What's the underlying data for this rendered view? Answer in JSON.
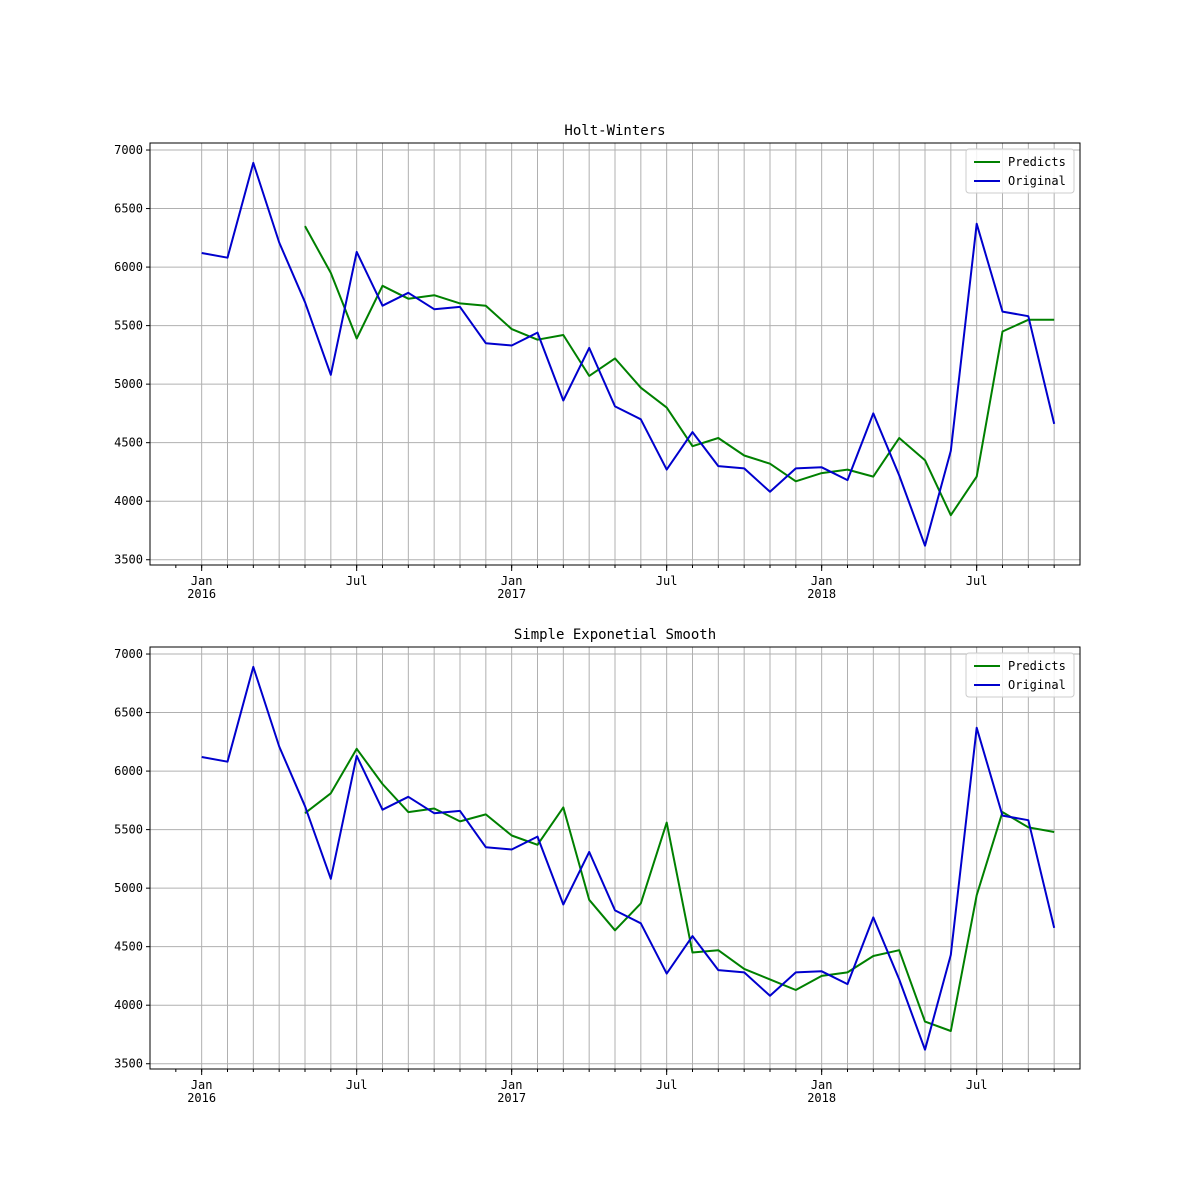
{
  "chart_data": [
    {
      "type": "line",
      "title": "Holt-Winters",
      "xlabel": "",
      "ylabel": "",
      "x_start": "2016-01",
      "x_end": "2018-10",
      "x_freq": "monthly",
      "xlim": [
        "2015-11",
        "2018-11"
      ],
      "ylim": [
        3500,
        7000
      ],
      "yticks": [
        "3500",
        "4000",
        "4500",
        "5000",
        "5500",
        "6000",
        "6500",
        "7000"
      ],
      "xticks_major": [
        {
          "month": "Jan",
          "year": "2016"
        },
        {
          "month": "Jul",
          "year": ""
        },
        {
          "month": "Jan",
          "year": "2017"
        },
        {
          "month": "Jul",
          "year": ""
        },
        {
          "month": "Jan",
          "year": "2018"
        },
        {
          "month": "Jul",
          "year": ""
        }
      ],
      "grid": true,
      "legend_position": "top-right",
      "series": [
        {
          "name": "Predicts",
          "color": "#008000",
          "values": [
            null,
            null,
            null,
            null,
            6350,
            5950,
            5390,
            5840,
            5730,
            5760,
            5690,
            5670,
            5470,
            5380,
            5420,
            5070,
            5220,
            4970,
            4800,
            4470,
            4540,
            4390,
            4320,
            4170,
            4240,
            4270,
            4210,
            4540,
            4350,
            3880,
            4210,
            5450,
            5550,
            5550
          ]
        },
        {
          "name": "Original",
          "color": "#0000cd",
          "values": [
            6120,
            6080,
            6890,
            6210,
            5700,
            5080,
            6130,
            5670,
            5780,
            5640,
            5660,
            5350,
            5330,
            5440,
            4860,
            5310,
            4810,
            4700,
            4270,
            4590,
            4300,
            4280,
            4080,
            4280,
            4290,
            4180,
            4750,
            4220,
            3620,
            4430,
            6370,
            5620,
            5580,
            4660
          ]
        }
      ]
    },
    {
      "type": "line",
      "title": "Simple Exponetial Smooth",
      "xlabel": "",
      "ylabel": "",
      "x_start": "2016-01",
      "x_end": "2018-10",
      "x_freq": "monthly",
      "xlim": [
        "2015-11",
        "2018-11"
      ],
      "ylim": [
        3500,
        7000
      ],
      "yticks": [
        "3500",
        "4000",
        "4500",
        "5000",
        "5500",
        "6000",
        "6500",
        "7000"
      ],
      "xticks_major": [
        {
          "month": "Jan",
          "year": "2016"
        },
        {
          "month": "Jul",
          "year": ""
        },
        {
          "month": "Jan",
          "year": "2017"
        },
        {
          "month": "Jul",
          "year": ""
        },
        {
          "month": "Jan",
          "year": "2018"
        },
        {
          "month": "Jul",
          "year": ""
        }
      ],
      "grid": true,
      "legend_position": "top-right",
      "series": [
        {
          "name": "Predicts",
          "color": "#008000",
          "values": [
            null,
            null,
            null,
            null,
            5640,
            5810,
            6190,
            5890,
            5650,
            5680,
            5570,
            5630,
            5450,
            5370,
            5690,
            4900,
            4640,
            4870,
            5560,
            4450,
            4470,
            4310,
            4220,
            4130,
            4250,
            4280,
            4420,
            4470,
            3860,
            3780,
            4940,
            5650,
            5520,
            5480
          ]
        },
        {
          "name": "Original",
          "color": "#0000cd",
          "values": [
            6120,
            6080,
            6890,
            6210,
            5700,
            5080,
            6130,
            5670,
            5780,
            5640,
            5660,
            5350,
            5330,
            5440,
            4860,
            5310,
            4810,
            4700,
            4270,
            4590,
            4300,
            4280,
            4080,
            4280,
            4290,
            4180,
            4750,
            4220,
            3620,
            4430,
            6370,
            5620,
            5580,
            4660
          ]
        }
      ]
    }
  ]
}
